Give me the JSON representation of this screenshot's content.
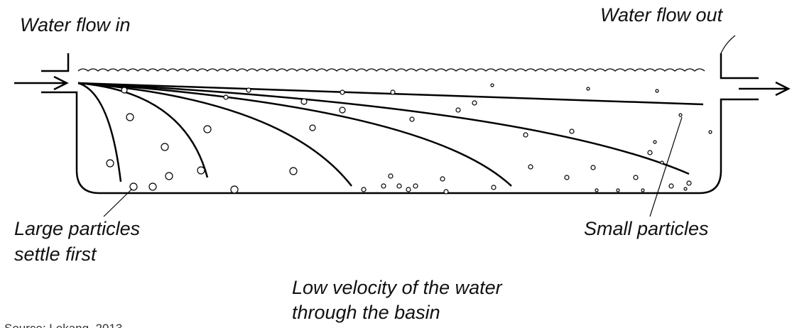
{
  "labels": {
    "inflow": "Water flow in",
    "outflow": "Water flow out",
    "large_particles": [
      "Large particles",
      "settle first"
    ],
    "small_particles": "Small particles",
    "velocity": [
      "Low velocity of the water",
      "through the basin"
    ],
    "source": "Source: Lekang, 2013"
  }
}
